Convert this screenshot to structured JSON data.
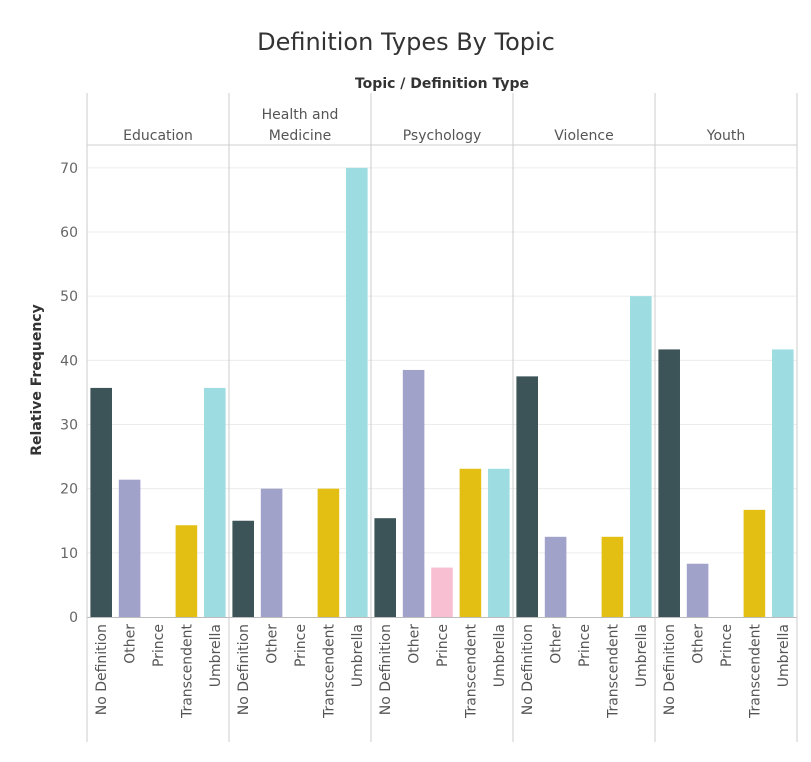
{
  "chart_data": {
    "type": "bar",
    "title": "Definition Types By Topic",
    "header_title": "Topic / Definition Type",
    "ylabel": "Relative Frequency",
    "ylim": [
      0,
      72
    ],
    "yticks": [
      0,
      10,
      20,
      30,
      40,
      50,
      60,
      70
    ],
    "categories": [
      "No Definition",
      "Other",
      "Prince",
      "Transcendent",
      "Umbrella"
    ],
    "colors": {
      "No Definition": "#3c5457",
      "Other": "#a1a2ca",
      "Prince": "#f8bed2",
      "Transcendent": "#e3bf14",
      "Umbrella": "#9ddde2"
    },
    "panels": [
      {
        "label": [
          "Education"
        ],
        "values": [
          35.7,
          21.4,
          0,
          14.3,
          35.7
        ]
      },
      {
        "label": [
          "Health and",
          "Medicine"
        ],
        "values": [
          15,
          20,
          0,
          20,
          70
        ]
      },
      {
        "label": [
          "Psychology"
        ],
        "values": [
          15.4,
          38.5,
          7.7,
          23.1,
          23.1
        ]
      },
      {
        "label": [
          "Violence"
        ],
        "values": [
          37.5,
          12.5,
          0,
          12.5,
          50
        ]
      },
      {
        "label": [
          "Youth"
        ],
        "values": [
          41.7,
          8.3,
          0,
          16.7,
          41.7
        ]
      }
    ],
    "grid": true,
    "legend": "none"
  }
}
